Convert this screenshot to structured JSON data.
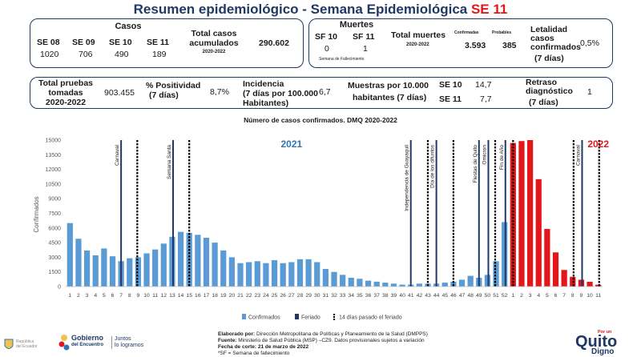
{
  "header": {
    "title_main": "Resumen epidemiológico - Semana Epidemiológica",
    "title_se": "SE 11"
  },
  "cases": {
    "title": "Casos",
    "weeks": [
      {
        "label": "SE 08",
        "value": "1020"
      },
      {
        "label": "SE 09",
        "value": "706"
      },
      {
        "label": "SE 10",
        "value": "490"
      },
      {
        "label": "SE 11",
        "value": "189"
      }
    ],
    "total_label": "Total casos acumulados",
    "total_sub": "2020-2022",
    "total_value": "290.602"
  },
  "deaths": {
    "title": "Muertes",
    "weeks": [
      {
        "label": "SF 10",
        "value": "0"
      },
      {
        "label": "SF 11",
        "value": "1"
      }
    ],
    "week_note": "Semana de Fallecimiento",
    "total_label": "Total muertes",
    "total_sub": "2020-2022",
    "confirmed_label": "Confirmadas",
    "confirmed_value": "3.593",
    "probable_label": "Probables",
    "probable_value": "385",
    "lethality_label": "Letalidad casos confirmados",
    "lethality_sub": "(7 días)",
    "lethality_value": "0,5%"
  },
  "tests": {
    "total_label_1": "Total pruebas",
    "total_label_2": "tomadas",
    "total_sub": "2020-2022",
    "total_value": "903.455",
    "positivity_label": "% Positividad",
    "positivity_sub": "(7 días)",
    "positivity_value": "8,7%",
    "incidence_label": "Incidencia",
    "incidence_sub": "(7 días por 100.000 Habitantes)",
    "incidence_value": "6,7",
    "samples_label_1": "Muestras por 10.000",
    "samples_label_2": "habitantes (7 días)",
    "samples": [
      {
        "label": "SE 10",
        "value": "14,7"
      },
      {
        "label": "SE 11",
        "value": "7,7"
      }
    ],
    "delay_label": "Retraso diagnóstico",
    "delay_sub": "(7 días)",
    "delay_value": "1"
  },
  "chart_data": {
    "type": "bar",
    "title": "Número de casos confirmados. DMQ 2020-2022",
    "ylabel": "Confirmados",
    "ylim": [
      0,
      15000
    ],
    "yticks": [
      "0",
      "1500",
      "3000",
      "4500",
      "6000",
      "7500",
      "9000",
      "10500",
      "12000",
      "13500",
      "15000"
    ],
    "year_labels": [
      {
        "text": "2021",
        "color": "#2e75b6",
        "week_index": 26
      },
      {
        "text": "2022",
        "color": "#e3161b",
        "week_index": 62
      }
    ],
    "x_2021": [
      "1",
      "2",
      "3",
      "4",
      "5",
      "6",
      "7",
      "8",
      "9",
      "10",
      "11",
      "12",
      "13",
      "14",
      "15",
      "16",
      "17",
      "18",
      "19",
      "20",
      "21",
      "22",
      "23",
      "24",
      "25",
      "26",
      "27",
      "28",
      "29",
      "30",
      "31",
      "32",
      "33",
      "34",
      "35",
      "36",
      "37",
      "38",
      "39",
      "40",
      "41",
      "42",
      "43",
      "44",
      "45",
      "46",
      "47",
      "48",
      "49",
      "50",
      "51",
      "52"
    ],
    "values_2021": [
      6500,
      4900,
      3700,
      3200,
      3900,
      3100,
      2600,
      2900,
      3000,
      3400,
      3800,
      4400,
      5100,
      5600,
      5500,
      5300,
      5000,
      4500,
      3700,
      3000,
      2400,
      2500,
      2600,
      2400,
      2700,
      2400,
      2500,
      2800,
      2800,
      2500,
      1800,
      1500,
      1200,
      900,
      800,
      600,
      500,
      400,
      300,
      200,
      200,
      300,
      300,
      300,
      400,
      500,
      700,
      1100,
      900,
      1200,
      2600,
      6600
    ],
    "x_2022": [
      "1",
      "2",
      "3",
      "4",
      "5",
      "6",
      "7",
      "8",
      "9",
      "10",
      "11"
    ],
    "values_2022": [
      14700,
      14900,
      15000,
      11000,
      5900,
      3500,
      1700,
      1000,
      700,
      490,
      189
    ],
    "series": [
      {
        "name": "Confirmados",
        "color": "#5b9bd5"
      },
      {
        "name": "Feriado",
        "color": "#1f3864"
      },
      {
        "name": "14 días pasado el feriado",
        "color": "#000000"
      }
    ],
    "holidays": [
      {
        "index": 6.5,
        "label": "Carnaval"
      },
      {
        "index": 12.6,
        "label": "Semana Santa"
      },
      {
        "index": 40.5,
        "label": "Independencia de Guayaquil"
      },
      {
        "index": 43.5,
        "label": "Día de los difuntos"
      },
      {
        "index": 48.5,
        "label": "Fiestas de Quito"
      },
      {
        "index": 49.6,
        "label": "Omicron"
      },
      {
        "index": 51.6,
        "label": "Fin de Año"
      },
      {
        "index": 60.6,
        "label": "Carnaval"
      }
    ],
    "after_holidays": [
      8.4,
      14.5,
      42.5,
      45.5,
      50.4,
      52.5,
      59.6,
      62.6
    ]
  },
  "footer": {
    "elab_label": "Elaborado por:",
    "elab_text": "Dirección Metropolitana de Políticas y Planeamiento de la Salud (DMPPS)",
    "source_label": "Fuente:",
    "source_text": "Ministerio de Salud Pública (MSP) –CZ9. Datos provisionales sujetos a variación",
    "date_label": "Fecha de corte:",
    "date_text": "21 de marzo de 2022",
    "note": "*SF = Semana de fallecimiento",
    "logo_gob_1": "Gobierno",
    "logo_gob_2": "del Encuentro",
    "logo_gob_3": "Juntos",
    "logo_gob_4": "lo logramos",
    "logo_rep_1": "República",
    "logo_rep_2": "del Ecuador",
    "logo_quito_1": "Por un",
    "logo_quito_2": "Quito",
    "logo_quito_3": "Digno"
  }
}
